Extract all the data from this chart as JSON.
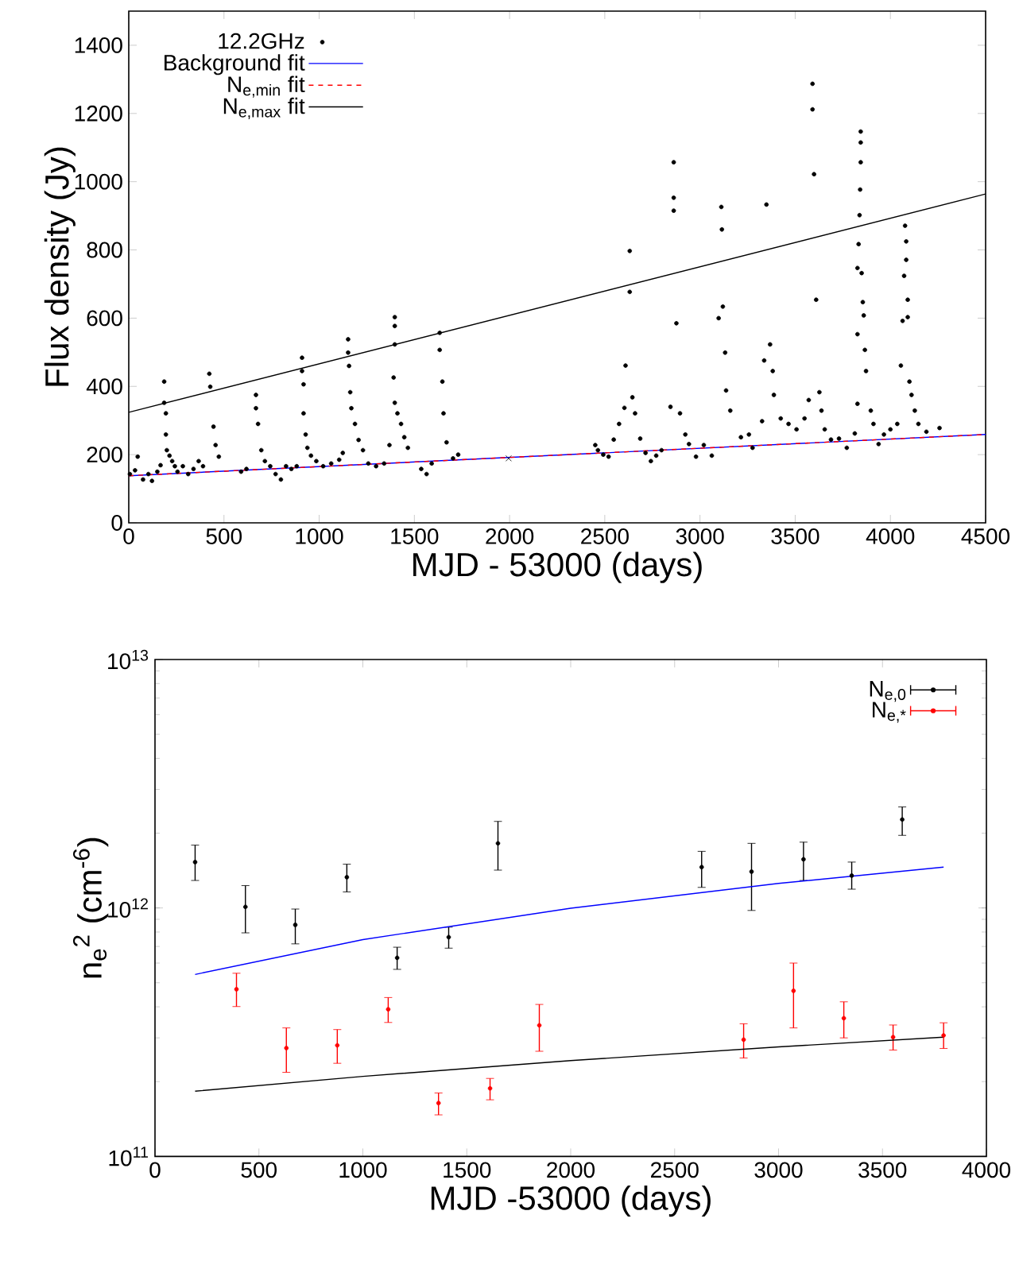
{
  "chart_data": [
    {
      "type": "scatter",
      "xlabel": "MJD - 53000 (days)",
      "ylabel": "Flux density (Jy)",
      "xlim": [
        0,
        4500
      ],
      "ylim": [
        0,
        1500
      ],
      "xticks": [
        0,
        500,
        1000,
        1500,
        2000,
        2500,
        3000,
        3500,
        4000,
        4500
      ],
      "yticks": [
        0,
        200,
        400,
        600,
        800,
        1000,
        1200,
        1400
      ],
      "legend": "top left",
      "series": [
        {
          "name": "12.2GHz",
          "marker": "circle",
          "color": "#000000",
          "x": [
            6,
            33,
            47,
            75,
            103,
            122,
            150,
            167,
            186,
            186,
            195,
            195,
            200,
            214,
            228,
            242,
            256,
            284,
            312,
            340,
            367,
            390,
            423,
            428,
            445,
            456,
            473,
            590,
            618,
            668,
            668,
            679,
            696,
            715,
            743,
            771,
            799,
            826,
            854,
            882,
            910,
            910,
            918,
            918,
            929,
            938,
            957,
            985,
            1021,
            1063,
            1105,
            1124,
            1152,
            1152,
            1157,
            1163,
            1169,
            1188,
            1207,
            1230,
            1258,
            1299,
            1341,
            1369,
            1397,
            1397,
            1397,
            1391,
            1397,
            1411,
            1430,
            1447,
            1466,
            1536,
            1564,
            1591,
            1633,
            1633,
            1647,
            1653,
            1669,
            1703,
            1730,
            2450,
            2464,
            2492,
            2520,
            2547,
            2575,
            2603,
            2609,
            2631,
            2631,
            2645,
            2659,
            2686,
            2714,
            2742,
            2770,
            2798,
            2845,
            2862,
            2862,
            2862,
            2876,
            2895,
            2923,
            2942,
            2979,
            3020,
            3062,
            3098,
            3112,
            3115,
            3120,
            3132,
            3137,
            3159,
            3215,
            3257,
            3276,
            3326,
            3337,
            3349,
            3368,
            3382,
            3388,
            3424,
            3465,
            3507,
            3549,
            3571,
            3591,
            3591,
            3599,
            3610,
            3627,
            3638,
            3655,
            3688,
            3730,
            3771,
            3813,
            3827,
            3827,
            3827,
            3833,
            3838,
            3841,
            3844,
            3844,
            3844,
            3849,
            3855,
            3860,
            3866,
            3872,
            3897,
            3911,
            3938,
            3966,
            4000,
            4036,
            4055,
            4064,
            4072,
            4077,
            4083,
            4083,
            4091,
            4091,
            4100,
            4111,
            4128,
            4147,
            4189,
            4258
          ],
          "values": [
            143,
            154,
            194,
            127,
            143,
            123,
            150,
            169,
            414,
            352,
            321,
            259,
            213,
            197,
            181,
            166,
            150,
            166,
            143,
            158,
            181,
            166,
            437,
            399,
            282,
            228,
            194,
            150,
            158,
            375,
            336,
            290,
            213,
            181,
            166,
            143,
            127,
            166,
            158,
            166,
            484,
            445,
            406,
            321,
            259,
            220,
            197,
            181,
            166,
            174,
            185,
            205,
            538,
            499,
            460,
            383,
            336,
            290,
            243,
            213,
            174,
            166,
            174,
            228,
            603,
            577,
            523,
            426,
            352,
            321,
            290,
            251,
            220,
            158,
            143,
            174,
            557,
            507,
            414,
            321,
            236,
            189,
            200,
            228,
            213,
            200,
            194,
            244,
            290,
            337,
            461,
            677,
            797,
            368,
            321,
            247,
            205,
            181,
            197,
            213,
            340,
            1057,
            953,
            915,
            585,
            321,
            259,
            231,
            194,
            228,
            197,
            600,
            926,
            860,
            634,
            499,
            388,
            329,
            251,
            259,
            220,
            298,
            476,
            933,
            523,
            445,
            375,
            306,
            290,
            274,
            306,
            360,
            1287,
            1212,
            1022,
            654,
            383,
            329,
            274,
            244,
            247,
            220,
            262,
            349,
            553,
            747,
            817,
            902,
            977,
            1057,
            1115,
            1147,
            732,
            647,
            608,
            507,
            445,
            329,
            290,
            231,
            259,
            274,
            290,
            461,
            592,
            724,
            871,
            825,
            771,
            654,
            603,
            414,
            375,
            329,
            290,
            267,
            278
          ]
        },
        {
          "name": "Background fit",
          "type": "line",
          "color": "#0000ff",
          "x": [
            0,
            4500
          ],
          "values": [
            138,
            259
          ]
        },
        {
          "name": "N$_{e,min}$ fit",
          "type": "line",
          "line_style": "dashed",
          "color": "#ff0000",
          "x": [
            0,
            4500
          ],
          "values": [
            138,
            259
          ]
        },
        {
          "name": "N$_{e,max}$ fit",
          "type": "line",
          "color": "#000000",
          "x": [
            0,
            4500
          ],
          "values": [
            324,
            964
          ]
        },
        {
          "marker": "cross",
          "color": "#000000",
          "x": [
            1995
          ],
          "values": [
            189
          ]
        }
      ]
    },
    {
      "type": "scatter",
      "xlabel": "MJD -53000 (days)",
      "ylabel": "n$_{e}$$^{2}$ (cm$^{-6}$)",
      "log": "y",
      "xlim": [
        0,
        4000
      ],
      "ylim": [
        100000000000.0,
        10000000000000.0
      ],
      "xticks": [
        0,
        500,
        1000,
        1500,
        2000,
        2500,
        3000,
        3500,
        4000
      ],
      "yticks": [
        {
          "value": 100000000000.0,
          "label": "10$^{11}$"
        },
        {
          "value": 1000000000000.0,
          "label": "10$^{12}$"
        },
        {
          "value": 10000000000000.0,
          "label": "10$^{13}$"
        }
      ],
      "legend": "top right",
      "series": [
        {
          "name": "N$_{e,0}$",
          "marker": "circle",
          "color": "#000000",
          "x": [
            193,
            435,
            675,
            923,
            1165,
            1413,
            1650,
            2630,
            2870,
            3120,
            3352,
            3595
          ],
          "values": [
            1530000000000.0,
            1010000000000.0,
            855000000000.0,
            1330000000000.0,
            630000000000.0,
            763000000000.0,
            1820000000000.0,
            1460000000000.0,
            1400000000000.0,
            1570000000000.0,
            1350000000000.0,
            2270000000000.0
          ],
          "errors": [
            [
              1290000000000.0,
              1790000000000.0
            ],
            [
              794000000000.0,
              1230000000000.0
            ],
            [
              717000000000.0,
              990000000000.0
            ],
            [
              1160000000000.0,
              1500000000000.0
            ],
            [
              566000000000.0,
              695000000000.0
            ],
            [
              689000000000.0,
              837000000000.0
            ],
            [
              1420000000000.0,
              2230000000000.0
            ],
            [
              1210000000000.0,
              1690000000000.0
            ],
            [
              977000000000.0,
              1820000000000.0
            ],
            [
              1290000000000.0,
              1840000000000.0
            ],
            [
              1190000000000.0,
              1530000000000.0
            ],
            [
              1960000000000.0,
              2550000000000.0
            ]
          ]
        },
        {
          "name": "N$_{e,*}$",
          "marker": "circle",
          "color": "#ff0000",
          "x": [
            392,
            632,
            877,
            1122,
            1364,
            1612,
            1849,
            2832,
            3072,
            3314,
            3551,
            3794
          ],
          "values": [
            471000000000.0,
            273000000000.0,
            280000000000.0,
            391000000000.0,
            164000000000.0,
            188000000000.0,
            337000000000.0,
            295000000000.0,
            464000000000.0,
            360000000000.0,
            302000000000.0,
            307000000000.0
          ],
          "errors": [
            [
              401000000000.0,
              546000000000.0
            ],
            [
              218000000000.0,
              329000000000.0
            ],
            [
              237000000000.0,
              324000000000.0
            ],
            [
              346000000000.0,
              436000000000.0
            ],
            [
              147000000000.0,
              180000000000.0
            ],
            [
              169000000000.0,
              206000000000.0
            ],
            [
              265000000000.0,
              409000000000.0
            ],
            [
              249000000000.0,
              342000000000.0
            ],
            [
              329000000000.0,
              600000000000.0
            ],
            [
              300000000000.0,
              419000000000.0
            ],
            [
              268000000000.0,
              338000000000.0
            ],
            [
              272000000000.0,
              345000000000.0
            ]
          ]
        },
        {
          "type": "line",
          "color": "#0000ff",
          "x": [
            193,
            1000,
            2000,
            3000,
            3794
          ],
          "values": [
            540000000000.0,
            746000000000.0,
            997000000000.0,
            1255000000000.0,
            1460000000000.0
          ]
        },
        {
          "type": "line",
          "color": "#000000",
          "x": [
            193,
            1000,
            2000,
            3000,
            3794
          ],
          "values": [
            183000000000.0,
            210000000000.0,
            243000000000.0,
            276000000000.0,
            302000000000.0
          ]
        }
      ]
    }
  ]
}
